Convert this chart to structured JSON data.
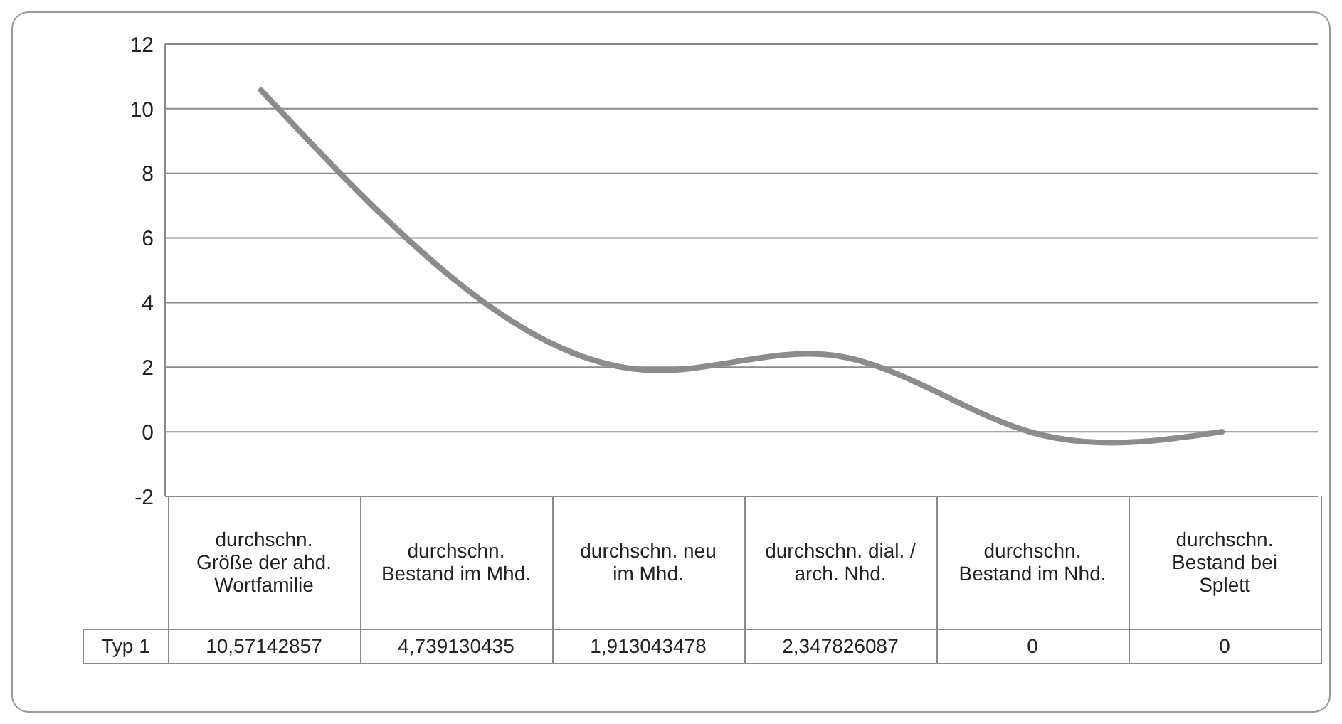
{
  "chart_data": {
    "type": "line",
    "categories": [
      "durchschn. Größe der ahd. Wortfamilie",
      "durchschn. Bestand im Mhd.",
      "durchschn. neu im Mhd.",
      "durchschn. dial. / arch. Nhd.",
      "durchschn. Bestand im Nhd.",
      "durchschn. Bestand bei Splett"
    ],
    "series": [
      {
        "name": "Typ 1",
        "color": "#8c8c8c",
        "values": [
          10.57142857,
          4.739130435,
          1.913043478,
          2.347826087,
          0,
          0
        ],
        "value_labels": [
          "10,57142857",
          "4,739130435",
          "1,913043478",
          "2,347826087",
          "0",
          "0"
        ]
      }
    ],
    "ylim": [
      -2,
      12
    ],
    "yticks": [
      -2,
      0,
      2,
      4,
      6,
      8,
      10,
      12
    ],
    "grid": "y",
    "marker": "none",
    "line_style": "solid",
    "data_labels": true
  }
}
